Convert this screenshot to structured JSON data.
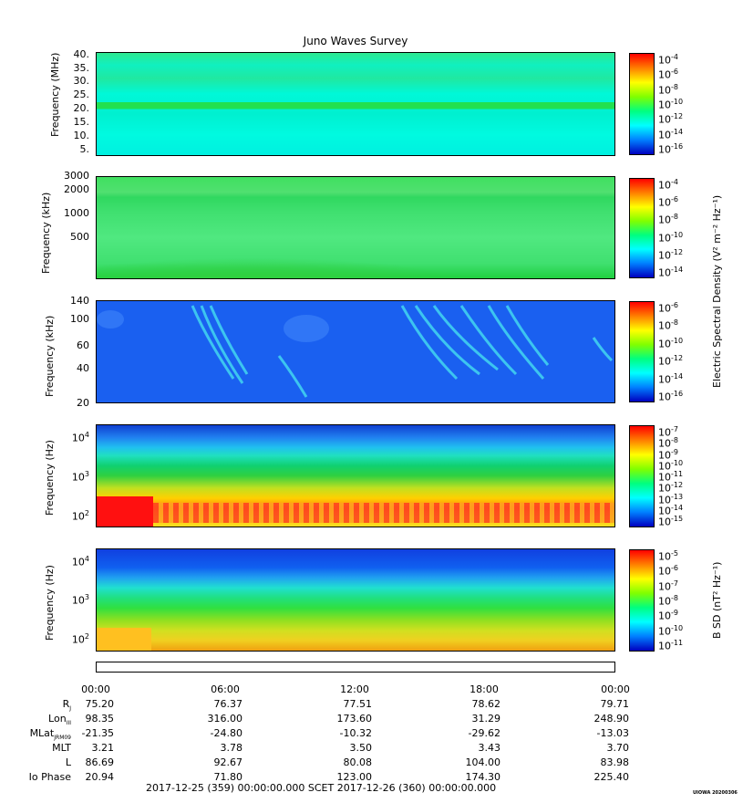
{
  "title": "Juno Waves Survey",
  "panels": [
    {
      "id": "p1",
      "ylabel": "Frequency (MHz)",
      "yticks": [
        "40.",
        "35.",
        "30.",
        "25.",
        "20.",
        "15.",
        "10.",
        "5."
      ],
      "cticks": [
        "-4",
        "-6",
        "-8",
        "-10",
        "-12",
        "-14",
        "-16"
      ]
    },
    {
      "id": "p2",
      "ylabel": "Frequency (kHz)",
      "yticks": [
        "3000",
        "2000",
        "1000",
        "500"
      ],
      "cticks": [
        "-4",
        "-6",
        "-8",
        "-10",
        "-12",
        "-14"
      ]
    },
    {
      "id": "p3",
      "ylabel": "Frequency (kHz)",
      "yticks": [
        "140",
        "100",
        "60",
        "40",
        "20"
      ],
      "cticks": [
        "-6",
        "-8",
        "-10",
        "-12",
        "-14",
        "-16"
      ]
    },
    {
      "id": "p4",
      "ylabel": "Frequency (Hz)",
      "yticks": [
        "4",
        "3",
        "2"
      ],
      "cticks": [
        "-7",
        "-8",
        "-9",
        "-10",
        "-11",
        "-12",
        "-13",
        "-14",
        "-15"
      ]
    },
    {
      "id": "p5",
      "ylabel": "Frequency (Hz)",
      "yticks": [
        "4",
        "3",
        "2"
      ],
      "cticks": [
        "-5",
        "-6",
        "-7",
        "-8",
        "-9",
        "-10",
        "-11"
      ]
    }
  ],
  "colorbar_labels": {
    "electric": "Electric Spectral Density (V² m⁻² Hz⁻¹)",
    "magnetic": "B SD (nT² Hz⁻¹)"
  },
  "time_labels": [
    "00:00",
    "06:00",
    "12:00",
    "18:00",
    "00:00"
  ],
  "ephemeris": [
    {
      "label": "R",
      "sub": "J",
      "values": [
        "75.20",
        "76.37",
        "77.51",
        "78.62",
        "79.71"
      ]
    },
    {
      "label": "Lon",
      "sub": "III",
      "values": [
        "98.35",
        "316.00",
        "173.60",
        "31.29",
        "248.90"
      ]
    },
    {
      "label": "MLat",
      "sub": "JRM09",
      "values": [
        "-21.35",
        "-24.80",
        "-10.32",
        "-29.62",
        "-13.03"
      ]
    },
    {
      "label": "MLT",
      "sub": "",
      "values": [
        "3.21",
        "3.78",
        "3.50",
        "3.43",
        "3.70"
      ]
    },
    {
      "label": "L",
      "sub": "",
      "values": [
        "86.69",
        "92.67",
        "80.08",
        "104.00",
        "83.98"
      ]
    },
    {
      "label": "Io Phase",
      "sub": "",
      "values": [
        "20.94",
        "71.80",
        "123.00",
        "174.30",
        "225.40"
      ]
    }
  ],
  "footer": "2017-12-25 (359) 00:00:00.000     SCET     2017-12-26 (360) 00:00:00.000",
  "stamp": "UIOWA 20200306",
  "colors": {
    "background": "#00ffd0",
    "green": "#22dd44",
    "blue_bg": "#1a5cf0",
    "red": "#ff1010",
    "yellow": "#ffee00"
  },
  "chart_data": [
    {
      "type": "heatmap",
      "panel": "p1",
      "ylabel": "Frequency (MHz)",
      "ylim": [
        3.5,
        41
      ],
      "colorbar_exponents": [
        -4,
        -16
      ]
    },
    {
      "type": "heatmap",
      "panel": "p2",
      "ylabel": "Frequency (kHz)",
      "ylim": [
        150,
        3000
      ],
      "colorbar_exponents": [
        -4,
        -14
      ]
    },
    {
      "type": "heatmap",
      "panel": "p3",
      "ylabel": "Frequency (kHz)",
      "ylim": [
        20,
        140
      ],
      "colorbar_exponents": [
        -6,
        -16
      ]
    },
    {
      "type": "heatmap",
      "panel": "p4",
      "ylabel": "Frequency (Hz)",
      "ylim": [
        50,
        20000
      ],
      "colorbar_exponents": [
        -7,
        -15
      ]
    },
    {
      "type": "heatmap",
      "panel": "p5",
      "ylabel": "Frequency (Hz)",
      "ylim": [
        50,
        20000
      ],
      "colorbar_exponents": [
        -5,
        -11
      ]
    }
  ]
}
